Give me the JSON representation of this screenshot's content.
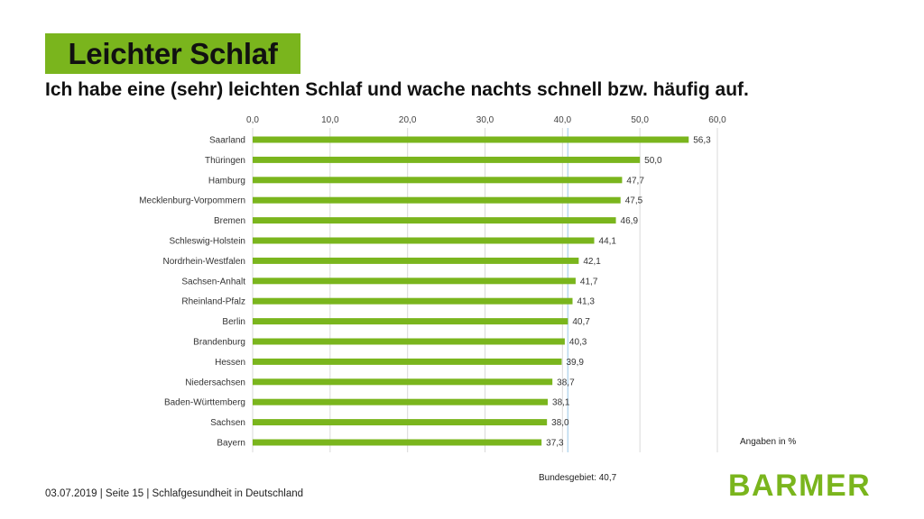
{
  "header": {
    "title": "Leichter Schlaf",
    "subtitle": "Ich habe eine (sehr) leichten Schlaf und wache nachts schnell bzw. häufig auf."
  },
  "notes": {
    "units": "Angaben in %",
    "reference": "Bundesgebiet: 40,7"
  },
  "footer": {
    "text": "03.07.2019 | Seite 15 | Schlafgesundheit in Deutschland"
  },
  "logo": {
    "text": "BARMER"
  },
  "colors": {
    "accent": "#7ab51d",
    "reference_line": "#b9d8ee",
    "grid": "#d9d9d9"
  },
  "chart_data": {
    "type": "bar",
    "orientation": "horizontal",
    "categories": [
      "Saarland",
      "Thüringen",
      "Hamburg",
      "Mecklenburg-Vorpommern",
      "Bremen",
      "Schleswig-Holstein",
      "Nordrhein-Westfalen",
      "Sachsen-Anhalt",
      "Rheinland-Pfalz",
      "Berlin",
      "Brandenburg",
      "Hessen",
      "Niedersachsen",
      "Baden-Württemberg",
      "Sachsen",
      "Bayern"
    ],
    "values": [
      56.3,
      50.0,
      47.7,
      47.5,
      46.9,
      44.1,
      42.1,
      41.7,
      41.3,
      40.7,
      40.3,
      39.9,
      38.7,
      38.1,
      38.0,
      37.3
    ],
    "value_labels": [
      "56,3",
      "50,0",
      "47,7",
      "47,5",
      "46,9",
      "44,1",
      "42,1",
      "41,7",
      "41,3",
      "40,7",
      "40,3",
      "39,9",
      "38,7",
      "38,1",
      "38,0",
      "37,3"
    ],
    "xlim": [
      0,
      60
    ],
    "ticks": [
      0,
      10,
      20,
      30,
      40,
      50,
      60
    ],
    "tick_labels": [
      "0,0",
      "10,0",
      "20,0",
      "30,0",
      "40,0",
      "50,0",
      "60,0"
    ],
    "axis_position": "top",
    "grid": true,
    "reference_value": 40.7
  }
}
